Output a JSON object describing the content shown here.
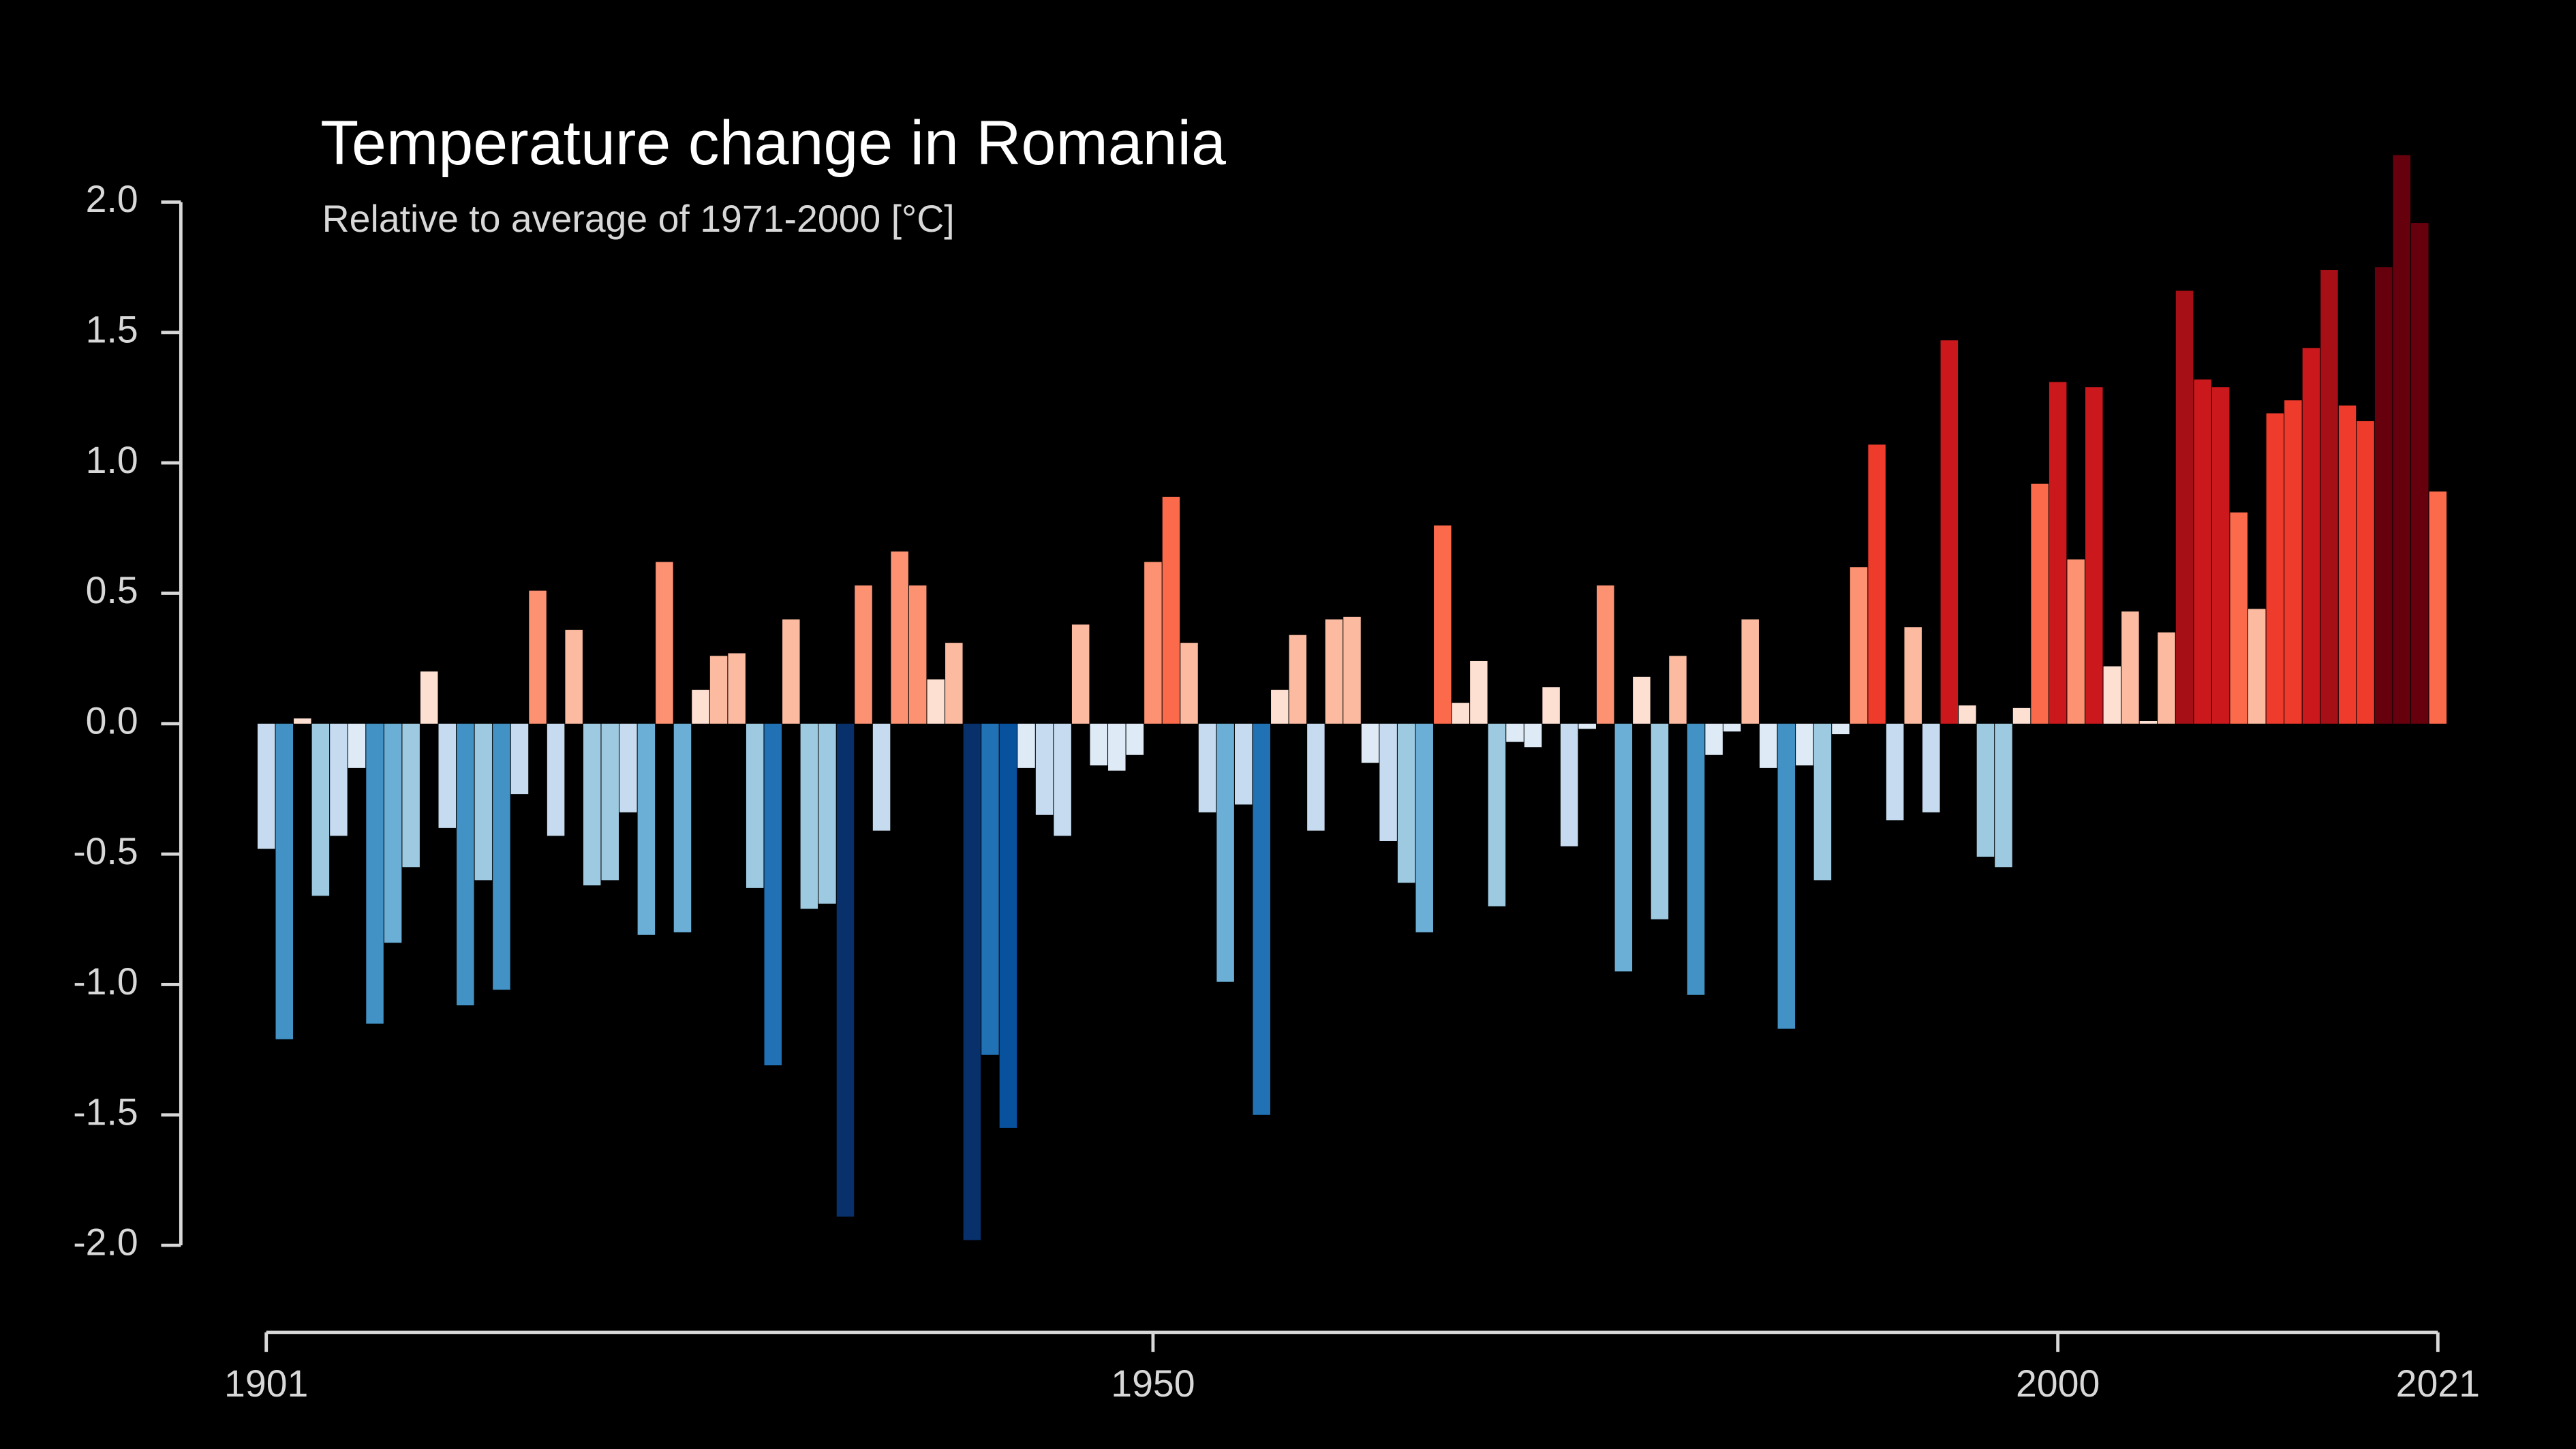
{
  "chart_data": {
    "type": "bar",
    "title": "Temperature change in Romania",
    "subtitle": "Relative to average of 1971-2000  [°C]",
    "x": [
      1901,
      1902,
      1903,
      1904,
      1905,
      1906,
      1907,
      1908,
      1909,
      1910,
      1911,
      1912,
      1913,
      1914,
      1915,
      1916,
      1917,
      1918,
      1919,
      1920,
      1921,
      1922,
      1923,
      1924,
      1925,
      1926,
      1927,
      1928,
      1929,
      1930,
      1931,
      1932,
      1933,
      1934,
      1935,
      1936,
      1937,
      1938,
      1939,
      1940,
      1941,
      1942,
      1943,
      1944,
      1945,
      1946,
      1947,
      1948,
      1949,
      1950,
      1951,
      1952,
      1953,
      1954,
      1955,
      1956,
      1957,
      1958,
      1959,
      1960,
      1961,
      1962,
      1963,
      1964,
      1965,
      1966,
      1967,
      1968,
      1969,
      1970,
      1971,
      1972,
      1973,
      1974,
      1975,
      1976,
      1977,
      1978,
      1979,
      1980,
      1981,
      1982,
      1983,
      1984,
      1985,
      1986,
      1987,
      1988,
      1989,
      1990,
      1991,
      1992,
      1993,
      1994,
      1995,
      1996,
      1997,
      1998,
      1999,
      2000,
      2001,
      2002,
      2003,
      2004,
      2005,
      2006,
      2007,
      2008,
      2009,
      2010,
      2011,
      2012,
      2013,
      2014,
      2015,
      2016,
      2017,
      2018,
      2019,
      2020,
      2021
    ],
    "values": [
      -0.48,
      -1.21,
      0.02,
      -0.66,
      -0.43,
      -0.17,
      -1.15,
      -0.84,
      -0.55,
      0.2,
      -0.4,
      -1.08,
      -0.6,
      -1.02,
      -0.27,
      0.51,
      -0.43,
      0.36,
      -0.62,
      -0.6,
      -0.34,
      -0.81,
      0.62,
      -0.8,
      0.13,
      0.26,
      0.27,
      -0.63,
      -1.31,
      0.4,
      -0.71,
      -0.69,
      -1.89,
      0.53,
      -0.41,
      0.66,
      0.53,
      0.17,
      0.31,
      -1.98,
      -1.27,
      -1.55,
      -0.17,
      -0.35,
      -0.43,
      0.38,
      -0.16,
      -0.18,
      -0.12,
      0.62,
      0.87,
      0.31,
      -0.34,
      -0.99,
      -0.31,
      -1.5,
      0.13,
      0.34,
      -0.41,
      0.4,
      0.41,
      -0.15,
      -0.45,
      -0.61,
      -0.8,
      0.76,
      0.08,
      0.24,
      -0.7,
      -0.07,
      -0.09,
      0.14,
      -0.47,
      -0.02,
      0.53,
      -0.95,
      0.18,
      -0.75,
      0.26,
      -1.04,
      -0.12,
      -0.03,
      0.4,
      -0.17,
      -1.17,
      -0.16,
      -0.6,
      -0.04,
      0.6,
      1.07,
      -0.37,
      0.37,
      -0.34,
      1.47,
      0.07,
      -0.51,
      -0.55,
      0.06,
      0.92,
      1.31,
      0.63,
      1.29,
      0.22,
      0.43,
      0.01,
      0.35,
      1.66,
      1.32,
      1.29,
      0.81,
      0.44,
      1.19,
      1.24,
      1.44,
      1.74,
      1.22,
      1.16,
      1.75,
      2.18,
      1.92,
      0.89
    ],
    "palette": [
      "#08306b",
      "#08519c",
      "#2171b5",
      "#4292c6",
      "#6baed6",
      "#9ecae1",
      "#c6dbef",
      "#deebf7",
      "#fee0d2",
      "#fcbba1",
      "#fc9272",
      "#fb6a4a",
      "#ef3b2c",
      "#cb181d",
      "#a50f15",
      "#67000d"
    ],
    "xlim": [
      1901,
      2021
    ],
    "xticks": [
      1901,
      1950,
      2000,
      2021
    ],
    "ylim": [
      -2,
      2
    ],
    "yticks": [
      {
        "value": -2,
        "label": "-2.0"
      },
      -1.5,
      {
        "value": -1,
        "label": "-1.0"
      },
      -0.5,
      {
        "value": 0,
        "label": "0.0"
      },
      0.5,
      {
        "value": 1,
        "label": "1.0"
      },
      1.5,
      {
        "value": 2,
        "label": "2.0"
      }
    ]
  }
}
